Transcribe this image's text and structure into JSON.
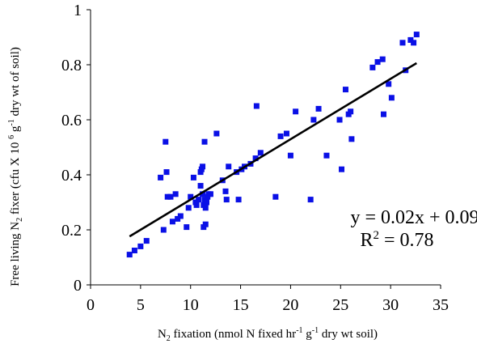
{
  "chart_data": {
    "type": "scatter",
    "xlabel": {
      "pre": "N",
      "sub1": "2",
      "mid": " fixation (nmol N fixed hr",
      "sup1": "-1",
      "mid2": " g",
      "sup2": "-1",
      "post": " dry wt soil)"
    },
    "ylabel": {
      "pre": "Free living N",
      "sub1": "2",
      "mid": " fixer (cfu X 10 ",
      "sup1": "6",
      "mid2": " g",
      "sup2": "-1",
      "post": " dry wt of soil)"
    },
    "xlim": [
      0,
      35
    ],
    "ylim": [
      0,
      1
    ],
    "x_ticks": [
      "0",
      "5",
      "10",
      "15",
      "20",
      "25",
      "30",
      "35"
    ],
    "y_ticks": [
      "0",
      "0.2",
      "0.4",
      "0.6",
      "0.8",
      "1"
    ],
    "marker_color": "#0a10e6",
    "line_color": "#000000",
    "trendline": {
      "x": [
        3.9,
        32.6
      ],
      "y": [
        0.176,
        0.806
      ]
    },
    "equation": "y = 0.02x + 0.09",
    "r_squared": {
      "pre": "R",
      "sup": "2",
      "post": " = 0.78"
    },
    "points": [
      [
        3.9,
        0.11
      ],
      [
        4.4,
        0.125
      ],
      [
        5.0,
        0.14
      ],
      [
        5.6,
        0.16
      ],
      [
        7.0,
        0.39
      ],
      [
        7.3,
        0.2
      ],
      [
        7.5,
        0.52
      ],
      [
        7.6,
        0.41
      ],
      [
        7.7,
        0.32
      ],
      [
        8.0,
        0.32
      ],
      [
        8.2,
        0.23
      ],
      [
        8.5,
        0.33
      ],
      [
        8.7,
        0.24
      ],
      [
        9.0,
        0.25
      ],
      [
        9.6,
        0.21
      ],
      [
        9.8,
        0.28
      ],
      [
        10.0,
        0.32
      ],
      [
        10.3,
        0.39
      ],
      [
        10.5,
        0.3
      ],
      [
        10.6,
        0.29
      ],
      [
        10.8,
        0.31
      ],
      [
        11.0,
        0.41
      ],
      [
        11.0,
        0.36
      ],
      [
        11.1,
        0.42
      ],
      [
        11.2,
        0.43
      ],
      [
        11.2,
        0.33
      ],
      [
        11.3,
        0.29
      ],
      [
        11.3,
        0.21
      ],
      [
        11.4,
        0.52
      ],
      [
        11.4,
        0.31
      ],
      [
        11.5,
        0.28
      ],
      [
        11.5,
        0.22
      ],
      [
        11.6,
        0.3
      ],
      [
        11.7,
        0.32
      ],
      [
        11.8,
        0.33
      ],
      [
        12.0,
        0.33
      ],
      [
        12.6,
        0.55
      ],
      [
        13.2,
        0.38
      ],
      [
        13.5,
        0.34
      ],
      [
        13.6,
        0.31
      ],
      [
        13.8,
        0.43
      ],
      [
        14.6,
        0.41
      ],
      [
        14.8,
        0.31
      ],
      [
        15.1,
        0.42
      ],
      [
        15.4,
        0.43
      ],
      [
        16.0,
        0.44
      ],
      [
        16.5,
        0.46
      ],
      [
        16.6,
        0.65
      ],
      [
        17.0,
        0.48
      ],
      [
        18.5,
        0.32
      ],
      [
        19.0,
        0.54
      ],
      [
        19.6,
        0.55
      ],
      [
        20.0,
        0.47
      ],
      [
        20.5,
        0.63
      ],
      [
        22.0,
        0.31
      ],
      [
        22.3,
        0.6
      ],
      [
        22.8,
        0.64
      ],
      [
        23.6,
        0.47
      ],
      [
        24.9,
        0.6
      ],
      [
        25.1,
        0.42
      ],
      [
        25.5,
        0.71
      ],
      [
        25.8,
        0.62
      ],
      [
        26.0,
        0.63
      ],
      [
        26.1,
        0.53
      ],
      [
        28.2,
        0.79
      ],
      [
        28.7,
        0.81
      ],
      [
        29.2,
        0.82
      ],
      [
        29.3,
        0.62
      ],
      [
        29.8,
        0.73
      ],
      [
        30.1,
        0.68
      ],
      [
        31.2,
        0.88
      ],
      [
        31.5,
        0.78
      ],
      [
        32.0,
        0.89
      ],
      [
        32.3,
        0.88
      ],
      [
        32.6,
        0.91
      ]
    ]
  }
}
